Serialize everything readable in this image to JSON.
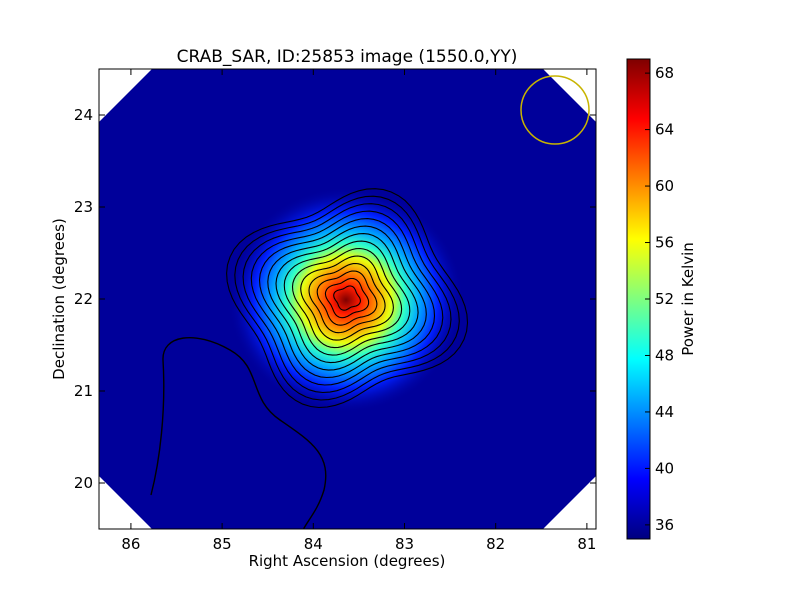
{
  "chart_data": {
    "type": "heatmap",
    "title": "CRAB_SAR, ID:25853 image (1550.0,YY)",
    "xlabel": "Right Ascension (degrees)",
    "ylabel": "Declination (degrees)",
    "xlim": [
      86.35,
      80.9
    ],
    "ylim": [
      19.5,
      24.5
    ],
    "x_ticks": [
      86,
      85,
      84,
      83,
      82,
      81
    ],
    "y_ticks": [
      20,
      21,
      22,
      23,
      24
    ],
    "x_tick_labels": [
      "86",
      "85",
      "84",
      "83",
      "82",
      "81"
    ],
    "y_tick_labels": [
      "20",
      "21",
      "22",
      "23",
      "24"
    ],
    "colorbar": {
      "label": "Power in Kelvin",
      "range": [
        35,
        69
      ],
      "ticks": [
        36,
        40,
        44,
        48,
        52,
        56,
        60,
        64,
        68
      ],
      "tick_labels": [
        "36",
        "40",
        "44",
        "48",
        "52",
        "56",
        "60",
        "64",
        "68"
      ],
      "colormap": "jet"
    },
    "source": {
      "ra": 83.63,
      "dec": 22.01,
      "peak": 69,
      "background": 35.5
    },
    "beam_circle": {
      "ra": 81.4,
      "dec": 24.08,
      "radius_deg": 0.37,
      "color": "#c8b400"
    },
    "grid": false
  }
}
